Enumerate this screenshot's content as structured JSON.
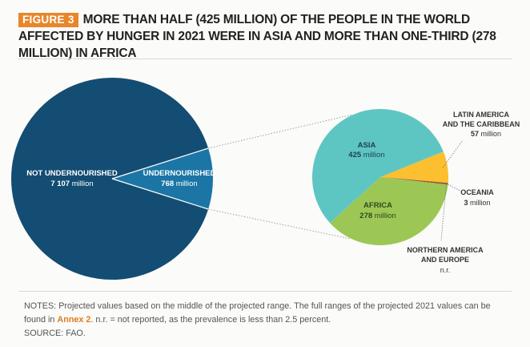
{
  "figure": {
    "label": "FIGURE 3",
    "title": "MORE THAN HALF (425 MILLION) OF THE PEOPLE IN THE WORLD AFFECTED BY HUNGER IN 2021 WERE IN ASIA AND MORE THAN ONE-THIRD (278 MILLION) IN AFRICA"
  },
  "chart_data": [
    {
      "type": "pie",
      "name": "world",
      "slices": [
        {
          "label": "NOT UNDERNOURISHED",
          "value": 7107,
          "value_text": "7 107",
          "unit": "million",
          "color": "#144d73"
        },
        {
          "label": "UNDERNOURISHED",
          "value": 768,
          "value_text": "768",
          "unit": "million",
          "color": "#1b76a6"
        }
      ]
    },
    {
      "type": "pie",
      "name": "undernourished",
      "slices": [
        {
          "label": "ASIA",
          "value": 425,
          "value_text": "425",
          "unit": "million",
          "color": "#5ec6c2"
        },
        {
          "label": "LATIN AMERICA AND THE CARIBBEAN",
          "value": 57,
          "value_text": "57",
          "unit": "million",
          "color": "#fbbf2f"
        },
        {
          "label": "OCEANIA",
          "value": 3,
          "value_text": "3",
          "unit": "million",
          "color": "#8a5a3c"
        },
        {
          "label": "NORTHERN AMERICA AND EUROPE",
          "value": null,
          "value_text": "n.r.",
          "unit": "",
          "color": "#c9892f"
        },
        {
          "label": "AFRICA",
          "value": 278,
          "value_text": "278",
          "unit": "million",
          "color": "#9cc755"
        }
      ]
    }
  ],
  "notes": {
    "line1": "NOTES: Projected values based on the middle of the projected range. The full ranges of the projected 2021 values can be",
    "line2_prefix": "found in",
    "annex": "Annex 2",
    "line2_suffix": ". n.r. = not reported, as the prevalence is less than 2.5 percent.",
    "source": "SOURCE: FAO."
  }
}
